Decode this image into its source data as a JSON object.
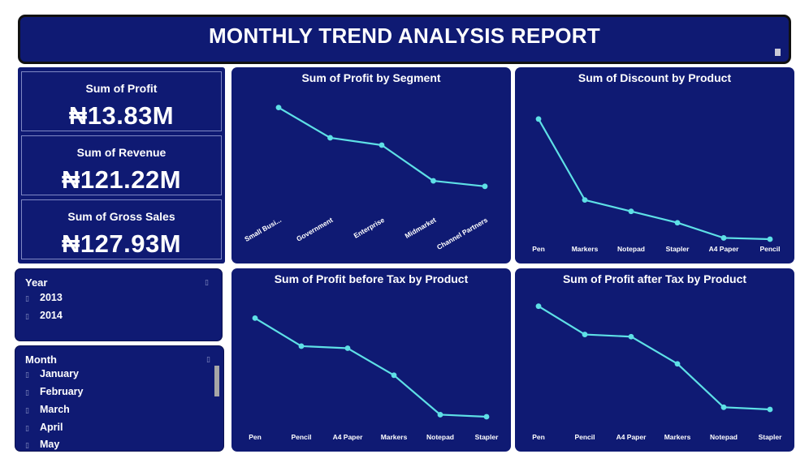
{
  "header": {
    "title": "MONTHLY TREND ANALYSIS REPORT"
  },
  "kpis": [
    {
      "label": "Sum of Profit",
      "value": "₦13.83M"
    },
    {
      "label": "Sum of Revenue",
      "value": "₦121.22M"
    },
    {
      "label": "Sum of Gross Sales",
      "value": "₦127.93M"
    }
  ],
  "slicers": {
    "year": {
      "title": "Year",
      "icon": "erase-icon",
      "items": [
        "2013",
        "2014"
      ]
    },
    "month": {
      "title": "Month",
      "icon": "erase-icon",
      "items": [
        "January",
        "February",
        "March",
        "April",
        "May"
      ]
    }
  },
  "colors": {
    "panel": "#0f1a73",
    "line": "#5ee0e6",
    "text": "#ffffff"
  },
  "chart_data": [
    {
      "id": "profit-by-segment",
      "type": "line",
      "title": "Sum of Profit by Segment",
      "categories": [
        "Small Busi...",
        "Government",
        "Enterprise",
        "Midmarket",
        "Channel Partners"
      ],
      "label_rotation": -30,
      "values": [
        0.95,
        0.62,
        0.54,
        0.15,
        0.09
      ],
      "ylim": [
        0,
        1
      ]
    },
    {
      "id": "discount-by-product",
      "type": "line",
      "title": "Sum of Discount by Product",
      "categories": [
        "Pen",
        "Markers",
        "Notepad",
        "Stapler",
        "A4 Paper",
        "Pencil"
      ],
      "values": [
        0.95,
        0.31,
        0.22,
        0.13,
        0.01,
        0.0
      ],
      "ylim": [
        0,
        1
      ]
    },
    {
      "id": "profit-before-tax-by-product",
      "type": "line",
      "title": "Sum of Profit before Tax by Product",
      "categories": [
        "Pen",
        "Pencil",
        "A4 Paper",
        "Markers",
        "Notepad",
        "Stapler"
      ],
      "values": [
        0.95,
        0.68,
        0.66,
        0.4,
        0.02,
        0.0
      ],
      "ylim": [
        0,
        1
      ]
    },
    {
      "id": "profit-after-tax-by-product",
      "type": "line",
      "title": "Sum of Profit after Tax by Product",
      "categories": [
        "Pen",
        "Pencil",
        "A4 Paper",
        "Markers",
        "Notepad",
        "Stapler"
      ],
      "values": [
        0.95,
        0.69,
        0.67,
        0.42,
        0.02,
        0.0
      ],
      "ylim": [
        0,
        1
      ]
    }
  ]
}
